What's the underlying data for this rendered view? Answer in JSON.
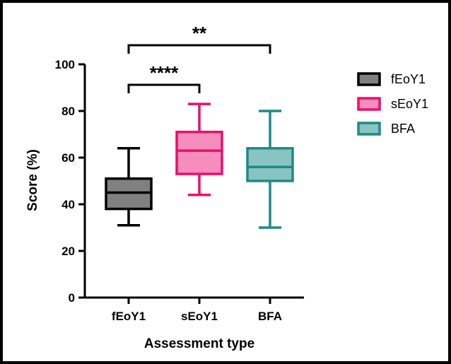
{
  "chart_data": {
    "type": "box",
    "xlabel": "Assessment type",
    "ylabel": "Score (%)",
    "ylim": [
      0,
      100
    ],
    "yticks": [
      0,
      20,
      40,
      60,
      80,
      100
    ],
    "categories": [
      "fEoY1",
      "sEoY1",
      "BFA"
    ],
    "series": [
      {
        "name": "fEoY1",
        "min": 31,
        "q1": 38,
        "median": 45,
        "q3": 51,
        "max": 64,
        "fill": "#808080",
        "stroke": "#000000"
      },
      {
        "name": "sEoY1",
        "min": 44,
        "q1": 53,
        "median": 63,
        "q3": 71,
        "max": 83,
        "fill": "#f78dbd",
        "stroke": "#e8106a"
      },
      {
        "name": "BFA",
        "min": 30,
        "q1": 50,
        "median": 56,
        "q3": 64,
        "max": 80,
        "fill": "#88c4c2",
        "stroke": "#1f8a86"
      }
    ],
    "legend_position": "top-right",
    "significance": [
      {
        "from": "fEoY1",
        "to": "sEoY1",
        "label": "****"
      },
      {
        "from": "fEoY1",
        "to": "BFA",
        "label": "**"
      }
    ]
  }
}
